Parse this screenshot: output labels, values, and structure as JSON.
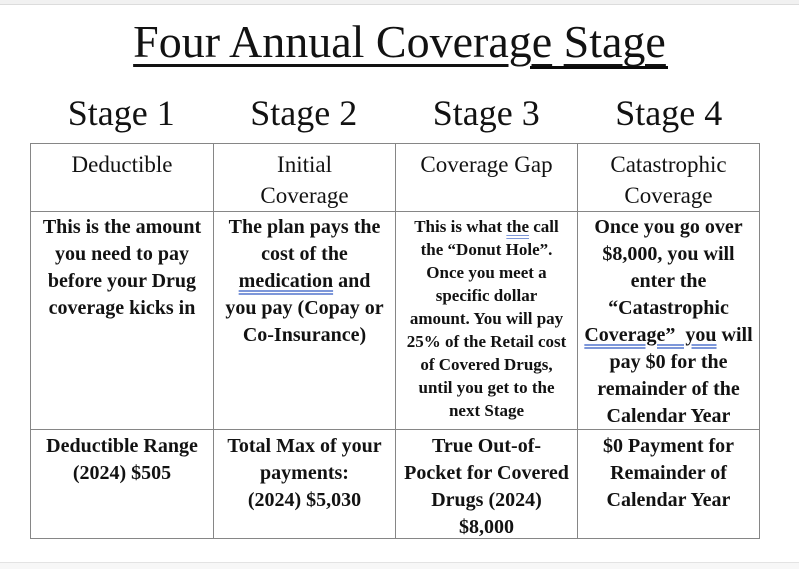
{
  "title": {
    "part1": "Four Annual Coverage",
    "part2": "Stage"
  },
  "table": {
    "columns": [
      {
        "stage_label": "Stage 1",
        "header": "Deductible",
        "description": [
          {
            "t": "This is the amount\nyou need to pay\nbefore your Drug\ncoverage kicks in",
            "u": false
          }
        ],
        "amount": "Deductible Range\n(2024) $505"
      },
      {
        "stage_label": "Stage 2",
        "header": "Initial\nCoverage",
        "description": [
          {
            "t": "The plan pays the\ncost of the\n",
            "u": false
          },
          {
            "t": "medication",
            "u": true
          },
          {
            "t": " and\nyou pay (Copay or\nCo-Insurance)",
            "u": false
          }
        ],
        "amount": "Total Max of your\npayments:\n(2024) $5,030"
      },
      {
        "stage_label": "Stage 3",
        "header": "Coverage Gap",
        "description": [
          {
            "t": "This is what ",
            "u": false
          },
          {
            "t": "the",
            "u": true
          },
          {
            "t": " call\nthe “Donut Hole”.\nOnce you meet a\nspecific dollar\namount. You will pay\n25% of the Retail cost\nof Covered Drugs,\nuntil you get to the\nnext Stage",
            "u": false
          }
        ],
        "amount": "True Out-of-\nPocket for Covered\nDrugs (2024)\n$8,000"
      },
      {
        "stage_label": "Stage 4",
        "header": "Catastrophic\nCoverage",
        "description": [
          {
            "t": "Once you go over\n$8,000, you will\nenter the\n“Catastrophic\n",
            "u": false
          },
          {
            "t": "Coverage”  you",
            "u": true
          },
          {
            "t": " will\npay $0 for the\nremainder of the\nCalendar Year",
            "u": false
          }
        ],
        "amount": "$0 Payment for\nRemainder of\nCalendar Year"
      }
    ]
  },
  "colors": {
    "table_border": "#868686",
    "grammar_underline": "#7d97d9",
    "text": "#121212"
  }
}
